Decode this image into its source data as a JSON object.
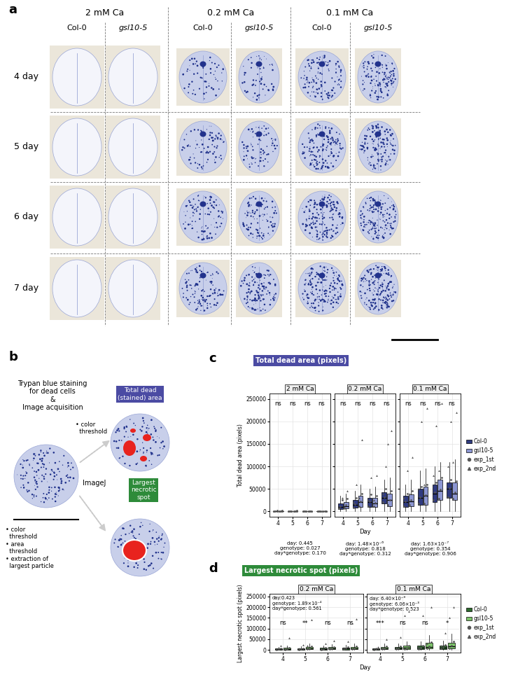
{
  "figure": {
    "panel_a": {
      "label": "a",
      "ca_levels": [
        "2 mM Ca",
        "0.2 mM Ca",
        "0.1 mM Ca"
      ],
      "genotypes": [
        "Col-0",
        "gsl10-5"
      ],
      "days": [
        "4 day",
        "5 day",
        "6 day",
        "7 day"
      ]
    },
    "panel_b": {
      "label": "b",
      "input_text": "Trypan blue staining\nfor dead cells\n&\nImage acquisition",
      "tool": "ImageJ",
      "steps_total": "• color\n  threshold",
      "steps_largest": "• color\n  threshold\n• area\n  threshold\n• extraction of\n  largest particle",
      "output_total": "Total dead\n(stained) area",
      "output_largest": "Largest\nnecrotic\nspot"
    },
    "panel_c": {
      "label": "c",
      "header": "Total dead area (pixels)",
      "ylabel": "Total dead area (pixels)",
      "xlabel": "Day",
      "point_series": [
        {
          "name": "exp_1st",
          "marker": "circle",
          "color": "#555555"
        },
        {
          "name": "exp_2nd",
          "marker": "triangle",
          "color": "#555555"
        }
      ]
    },
    "panel_d": {
      "label": "d",
      "header": "Largest necrotic spot (pixels)",
      "ylabel": "Largest necrotic spot (pixels)",
      "xlabel": "Day",
      "point_series": [
        {
          "name": "exp_1st",
          "marker": "circle",
          "color": "#555555"
        },
        {
          "name": "exp_2nd",
          "marker": "triangle",
          "color": "#555555"
        }
      ]
    }
  },
  "chart_data": [
    {
      "type": "box",
      "title": "2 mM Ca",
      "categories": [
        "4",
        "5",
        "6",
        "7"
      ],
      "ylim": [
        -12000,
        262000
      ],
      "yticks": [
        0,
        50000,
        100000,
        150000,
        200000,
        250000
      ],
      "grid": true,
      "tick_labels": true,
      "legend": "right",
      "stats": [
        "day: 0.445",
        "genotype: 0.027",
        "day*genotype: 0.170"
      ],
      "significance": [
        "ns",
        "ns",
        "ns",
        "ns"
      ],
      "series": [
        {
          "name": "Col-0",
          "color": "#2f3a80",
          "whisker_low": [
            0,
            0,
            0,
            0
          ],
          "q1": [
            100,
            100,
            100,
            100
          ],
          "median": [
            400,
            300,
            300,
            300
          ],
          "q3": [
            900,
            800,
            700,
            700
          ],
          "whisker_high": [
            2000,
            1800,
            1500,
            1500
          ],
          "points": {
            "exp_1st": [
              [
                200,
                600,
                1500
              ],
              [
                100,
                500,
                1200
              ],
              [
                200,
                400,
                1000
              ],
              [
                100,
                500,
                900
              ]
            ],
            "exp_2nd": [
              [
                300,
                800
              ],
              [
                200,
                900
              ],
              [
                300,
                700
              ],
              [
                200,
                600
              ]
            ]
          }
        },
        {
          "name": "gsl10-5",
          "color": "#8c96d2",
          "whisker_low": [
            0,
            0,
            0,
            0
          ],
          "q1": [
            100,
            100,
            100,
            100
          ],
          "median": [
            500,
            400,
            400,
            300
          ],
          "q3": [
            1000,
            900,
            800,
            700
          ],
          "whisker_high": [
            2200,
            2000,
            1700,
            1600
          ],
          "points": {
            "exp_1st": [
              [
                300,
                700,
                1600
              ],
              [
                200,
                600,
                1400
              ],
              [
                200,
                500,
                1100
              ],
              [
                100,
                400,
                1000
              ]
            ],
            "exp_2nd": [
              [
                400,
                900
              ],
              [
                300,
                800
              ],
              [
                200,
                700
              ],
              [
                300,
                600
              ]
            ]
          }
        }
      ]
    },
    {
      "type": "box",
      "title": "0.2 mM Ca",
      "categories": [
        "4",
        "5",
        "6",
        "7"
      ],
      "ylim": [
        -12000,
        262000
      ],
      "yticks": [
        0,
        50000,
        100000,
        150000,
        200000,
        250000
      ],
      "grid": true,
      "tick_labels": "x",
      "stats": [
        "day: 1.48×10⁻⁶",
        "genotype: 0.818",
        "day*genotype: 0.312"
      ],
      "significance": [
        "ns",
        "ns",
        "ns",
        "ns"
      ],
      "series": [
        {
          "name": "Col-0",
          "color": "#2f3a80",
          "whisker_low": [
            0,
            0,
            0,
            0
          ],
          "q1": [
            5000,
            8000,
            10000,
            18000
          ],
          "median": [
            10000,
            15000,
            20000,
            30000
          ],
          "q3": [
            18000,
            25000,
            30000,
            42000
          ],
          "whisker_high": [
            35000,
            45000,
            50000,
            70000
          ],
          "points": {
            "exp_1st": [
              [
                6000,
                12000,
                25000
              ],
              [
                9000,
                16000,
                30000
              ],
              [
                12000,
                22000,
                38000
              ],
              [
                20000,
                32000,
                50000
              ]
            ],
            "exp_2nd": [
              [
                8000,
                30000
              ],
              [
                20000,
                60000
              ],
              [
                25000,
                75000
              ],
              [
                40000,
                100000
              ]
            ]
          }
        },
        {
          "name": "gsl10-5",
          "color": "#8c96d2",
          "whisker_low": [
            0,
            0,
            0,
            0
          ],
          "q1": [
            6000,
            10000,
            10000,
            12000
          ],
          "median": [
            12000,
            20000,
            18000,
            25000
          ],
          "q3": [
            20000,
            35000,
            30000,
            40000
          ],
          "whisker_high": [
            40000,
            60000,
            55000,
            75000
          ],
          "points": {
            "exp_1st": [
              [
                7000,
                14000,
                28000
              ],
              [
                12000,
                22000,
                40000
              ],
              [
                11000,
                19000,
                35000
              ],
              [
                14000,
                26000,
                45000
              ]
            ],
            "exp_2nd": [
              [
                10000,
                45000
              ],
              [
                30000,
                160000
              ],
              [
                25000,
                80000
              ],
              [
                150000,
                180000
              ]
            ]
          }
        }
      ]
    },
    {
      "type": "box",
      "title": "0.1 mM Ca",
      "categories": [
        "4",
        "5",
        "6",
        "7"
      ],
      "ylim": [
        -12000,
        262000
      ],
      "yticks": [
        0,
        50000,
        100000,
        150000,
        200000,
        250000
      ],
      "grid": true,
      "tick_labels": "x",
      "stats": [
        "day: 1.63×10⁻⁷",
        "genotype: 0.354",
        "day*genotype: 0.906"
      ],
      "significance": [
        "ns",
        "ns",
        "ns",
        "ns"
      ],
      "series": [
        {
          "name": "Col-0",
          "color": "#2f3a80",
          "whisker_low": [
            0,
            0,
            0,
            0
          ],
          "q1": [
            10000,
            15000,
            20000,
            30000
          ],
          "median": [
            20000,
            30000,
            40000,
            50000
          ],
          "q3": [
            35000,
            50000,
            60000,
            65000
          ],
          "whisker_high": [
            60000,
            90000,
            100000,
            110000
          ],
          "points": {
            "exp_1st": [
              [
                12000,
                22000,
                40000
              ],
              [
                18000,
                32000,
                55000
              ],
              [
                25000,
                42000,
                65000
              ],
              [
                32000,
                52000,
                70000
              ]
            ],
            "exp_2nd": [
              [
                30000,
                90000
              ],
              [
                50000,
                200000
              ],
              [
                80000,
                190000
              ],
              [
                100000,
                200000
              ]
            ]
          }
        },
        {
          "name": "gsl10-5",
          "color": "#8c96d2",
          "whisker_low": [
            0,
            0,
            0,
            0
          ],
          "q1": [
            12000,
            15000,
            25000,
            25000
          ],
          "median": [
            22000,
            35000,
            45000,
            40000
          ],
          "q3": [
            38000,
            55000,
            70000,
            65000
          ],
          "whisker_high": [
            70000,
            95000,
            110000,
            115000
          ],
          "points": {
            "exp_1st": [
              [
                14000,
                25000,
                45000
              ],
              [
                17000,
                36000,
                60000
              ],
              [
                28000,
                48000,
                75000
              ],
              [
                28000,
                42000,
                68000
              ]
            ],
            "exp_2nd": [
              [
                40000,
                120000
              ],
              [
                60000,
                230000
              ],
              [
                90000,
                240000
              ],
              [
                110000,
                220000
              ]
            ]
          }
        }
      ]
    },
    {
      "type": "box",
      "title": "0.2 mM Ca",
      "categories": [
        "4",
        "5",
        "6",
        "7"
      ],
      "ylim": [
        -12000,
        262000
      ],
      "yticks": [
        0,
        50000,
        100000,
        150000,
        200000,
        250000
      ],
      "grid": true,
      "tick_labels": true,
      "legend": "right",
      "stats": [
        "day:0.423",
        "genotype: 1.89×10⁻⁴",
        "day*genotype: 0.561"
      ],
      "significance": [
        "ns",
        "**",
        "ns",
        "ns"
      ],
      "series": [
        {
          "name": "Col-0",
          "color": "#2d6a2d",
          "whisker_low": [
            0,
            0,
            0,
            0
          ],
          "q1": [
            1000,
            1500,
            2000,
            2000
          ],
          "median": [
            3000,
            4000,
            5000,
            6000
          ],
          "q3": [
            7000,
            8000,
            10000,
            12000
          ],
          "whisker_high": [
            15000,
            16000,
            20000,
            25000
          ],
          "points": {
            "exp_1st": [
              [
                1500,
                3500,
                8000
              ],
              [
                2000,
                4500,
                9000
              ],
              [
                2500,
                5500,
                12000
              ],
              [
                3000,
                7000,
                14000
              ]
            ],
            "exp_2nd": [
              [
                5000,
                20000
              ],
              [
                6000,
                25000
              ],
              [
                8000,
                30000
              ],
              [
                10000,
                40000
              ]
            ]
          }
        },
        {
          "name": "gsl10-5",
          "color": "#7dc36b",
          "whisker_low": [
            0,
            0,
            0,
            0
          ],
          "q1": [
            2000,
            3000,
            3000,
            3000
          ],
          "median": [
            5000,
            8000,
            7000,
            8000
          ],
          "q3": [
            10000,
            15000,
            14000,
            15000
          ],
          "whisker_high": [
            20000,
            30000,
            28000,
            30000
          ],
          "points": {
            "exp_1st": [
              [
                2500,
                5500,
                11000
              ],
              [
                3500,
                8500,
                16000
              ],
              [
                3500,
                7500,
                15000
              ],
              [
                4000,
                9000,
                16000
              ]
            ],
            "exp_2nd": [
              [
                8000,
                55000
              ],
              [
                20000,
                140000
              ],
              [
                12000,
                45000
              ],
              [
                125000,
                145000
              ]
            ]
          }
        }
      ]
    },
    {
      "type": "box",
      "title": "0.1 mM Ca",
      "categories": [
        "4",
        "5",
        "6",
        "7"
      ],
      "ylim": [
        -12000,
        262000
      ],
      "yticks": [
        0,
        50000,
        100000,
        150000,
        200000,
        250000
      ],
      "grid": true,
      "tick_labels": "x",
      "stats": [
        "day: 6.40×10⁻³",
        "genotype: 6.06×10⁻³",
        "day*genotype: 0.523"
      ],
      "significance": [
        "***",
        "ns",
        "ns",
        "*"
      ],
      "series": [
        {
          "name": "Col-0",
          "color": "#2d6a2d",
          "whisker_low": [
            0,
            0,
            0,
            0
          ],
          "q1": [
            1000,
            3000,
            4000,
            5000
          ],
          "median": [
            3000,
            8000,
            10000,
            12000
          ],
          "q3": [
            6000,
            15000,
            20000,
            22000
          ],
          "whisker_high": [
            12000,
            30000,
            40000,
            45000
          ],
          "points": {
            "exp_1st": [
              [
                1500,
                3500,
                7000
              ],
              [
                3500,
                9000,
                16000
              ],
              [
                4500,
                11000,
                22000
              ],
              [
                6000,
                13000,
                25000
              ]
            ],
            "exp_2nd": [
              [
                4000,
                15000
              ],
              [
                12000,
                60000
              ],
              [
                15000,
                160000
              ],
              [
                20000,
                80000
              ]
            ]
          }
        },
        {
          "name": "gsl10-5",
          "color": "#7dc36b",
          "whisker_low": [
            0,
            0,
            0,
            0
          ],
          "q1": [
            3000,
            4000,
            6000,
            7000
          ],
          "median": [
            8000,
            10000,
            15000,
            18000
          ],
          "q3": [
            15000,
            20000,
            35000,
            35000
          ],
          "whisker_high": [
            30000,
            40000,
            70000,
            75000
          ],
          "points": {
            "exp_1st": [
              [
                3500,
                9000,
                16000
              ],
              [
                4500,
                11000,
                22000
              ],
              [
                7000,
                16000,
                38000
              ],
              [
                8000,
                20000,
                40000
              ]
            ],
            "exp_2nd": [
              [
                10000,
                50000
              ],
              [
                160000,
                180000
              ],
              [
                30000,
                200000
              ],
              [
                150000,
                200000
              ]
            ]
          }
        }
      ]
    }
  ]
}
